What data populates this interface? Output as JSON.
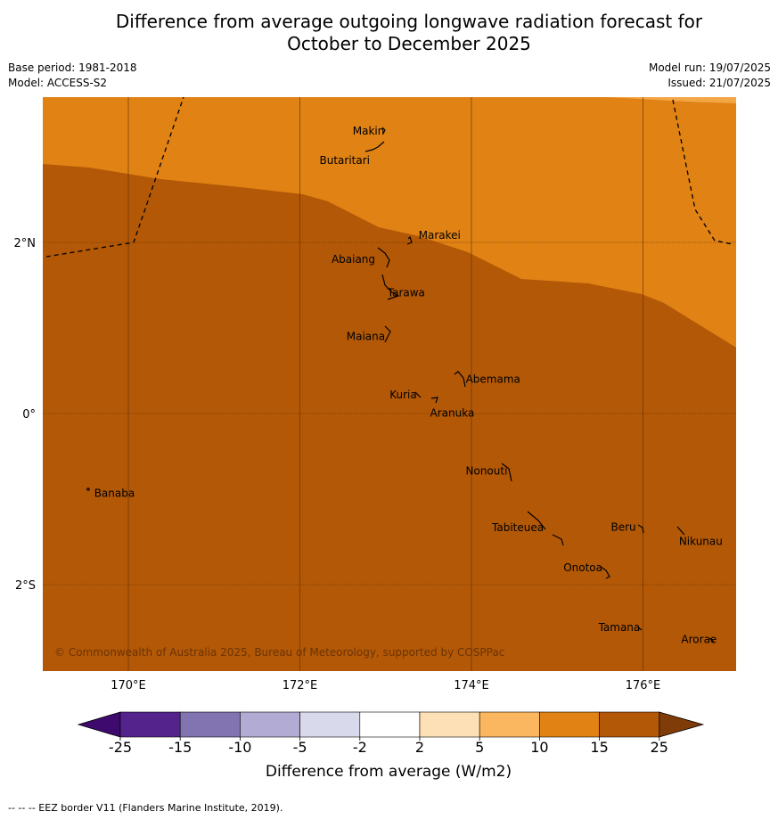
{
  "title_line1": "Difference from average outgoing longwave radiation forecast for",
  "title_line2": "October to December 2025",
  "base_period": "Base period: 1981-2018",
  "model": "Model: ACCESS-S2",
  "model_run": "Model run: 19/07/2025",
  "issued": "Issued: 21/07/2025",
  "copyright": "© Commonwealth of Australia 2025, Bureau of Meteorology, supported by COSPPac",
  "footnote": "-- -- -- EEZ border V11 (Flanders Marine Institute, 2019).",
  "map": {
    "lon_labels": [
      "170°E",
      "172°E",
      "174°E",
      "176°E"
    ],
    "lon_values": [
      170,
      172,
      174,
      176
    ],
    "lat_labels": [
      "2°N",
      "0°",
      "2°S"
    ],
    "lat_values": [
      2,
      0,
      -2
    ],
    "places": [
      {
        "name": "Makin",
        "lon": 173.0,
        "lat": 3.3
      },
      {
        "name": "Butaritari",
        "lon": 172.8,
        "lat": 3.0
      },
      {
        "name": "Marakei",
        "lon": 173.3,
        "lat": 2.0
      },
      {
        "name": "Abaiang",
        "lon": 172.95,
        "lat": 1.8
      },
      {
        "name": "Tarawa",
        "lon": 173.0,
        "lat": 1.4
      },
      {
        "name": "Maiana",
        "lon": 173.0,
        "lat": 0.9
      },
      {
        "name": "Abemama",
        "lon": 173.85,
        "lat": 0.4
      },
      {
        "name": "Kuria",
        "lon": 173.4,
        "lat": 0.22
      },
      {
        "name": "Aranuka",
        "lon": 173.6,
        "lat": 0.15
      },
      {
        "name": "Nonouti",
        "lon": 174.4,
        "lat": -0.67
      },
      {
        "name": "Banaba",
        "lon": 169.55,
        "lat": -0.85
      },
      {
        "name": "Tabiteuea",
        "lon": 174.8,
        "lat": -1.3
      },
      {
        "name": "Beru",
        "lon": 176.0,
        "lat": -1.33
      },
      {
        "name": "Nikunau",
        "lon": 176.45,
        "lat": -1.35
      },
      {
        "name": "Onotoa",
        "lon": 175.55,
        "lat": -1.8
      },
      {
        "name": "Tamana",
        "lon": 175.98,
        "lat": -2.5
      },
      {
        "name": "Arorae",
        "lon": 176.82,
        "lat": -2.64
      }
    ]
  },
  "colorbar": {
    "label": "Difference from average (W/m2)",
    "ticks": [
      "-25",
      "-15",
      "-10",
      "-5",
      "-2",
      "2",
      "5",
      "10",
      "15",
      "25"
    ],
    "colors": [
      "#3f0a6e",
      "#54238b",
      "#8174b0",
      "#b2acd5",
      "#d9d9ec",
      "#ffffff",
      "#fee0b6",
      "#fbb660",
      "#e08214",
      "#b35806",
      "#7f3b08"
    ]
  }
}
